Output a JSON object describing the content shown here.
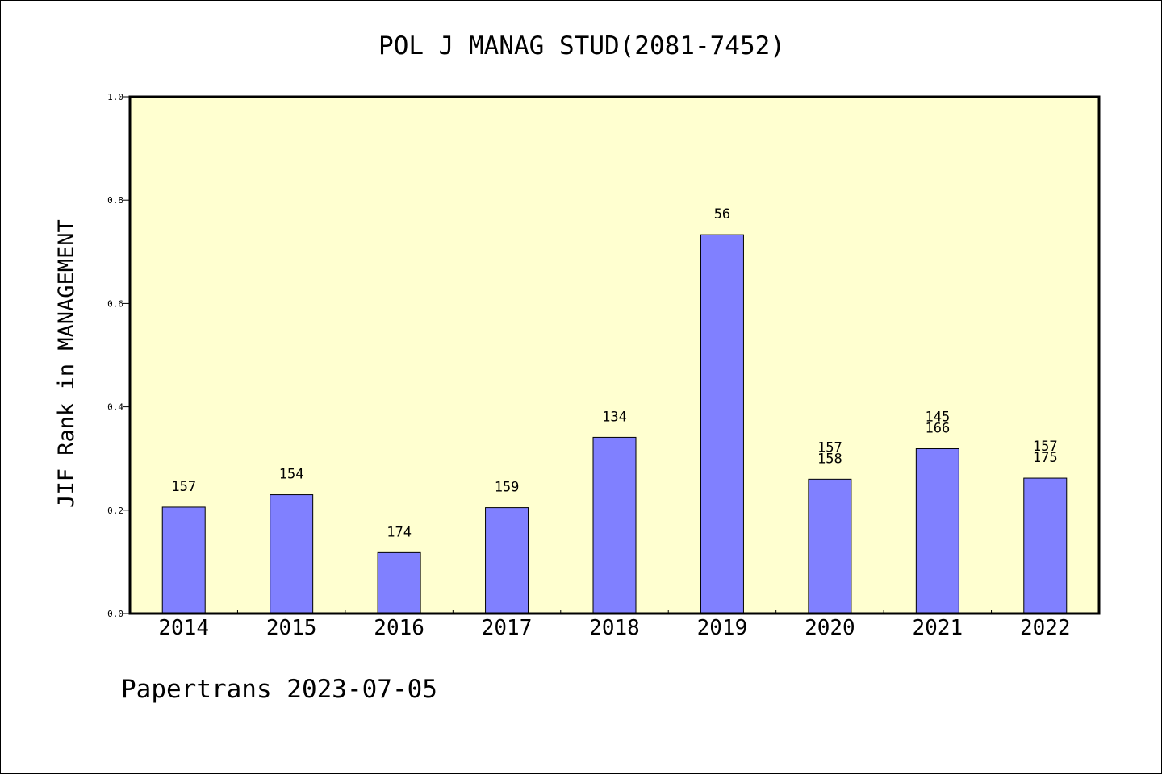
{
  "chart_data": {
    "type": "bar",
    "title": "POL J MANAG STUD(2081-7452)",
    "ylabel": "JIF Rank in MANAGEMENT",
    "xlabel": "",
    "ylim": [
      0,
      1.0
    ],
    "yticks": [
      "0.0",
      "0.2",
      "0.4",
      "0.6",
      "0.8",
      "1.0"
    ],
    "categories": [
      "2014",
      "2015",
      "2016",
      "2017",
      "2018",
      "2019",
      "2020",
      "2021",
      "2022"
    ],
    "values": [
      0.206,
      0.23,
      0.118,
      0.205,
      0.341,
      0.733,
      0.26,
      0.319,
      0.262
    ],
    "labels": [
      [
        "157"
      ],
      [
        "154"
      ],
      [
        "174"
      ],
      [
        "159"
      ],
      [
        "134"
      ],
      [
        "56"
      ],
      [
        "157",
        "158"
      ],
      [
        "145",
        "166"
      ],
      [
        "157",
        "175"
      ]
    ],
    "grid": false,
    "colors": {
      "bar": "#8080ff",
      "plot_bg": "#ffffd0",
      "axis": "#000000"
    }
  },
  "footer": "Papertrans 2023-07-05"
}
